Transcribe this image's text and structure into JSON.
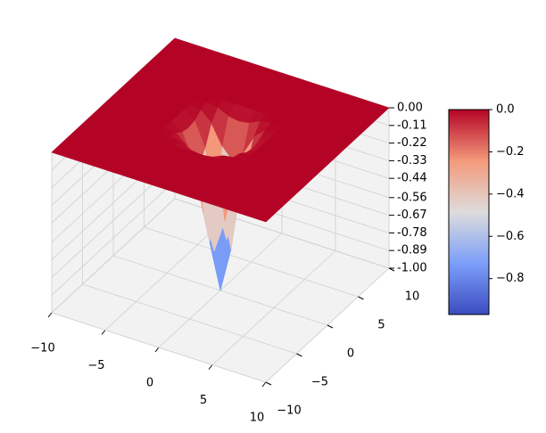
{
  "chart_data": {
    "type": "surface",
    "x": [
      -10,
      -6,
      -4,
      -3,
      -2,
      -1,
      0,
      1,
      2,
      3,
      4,
      6,
      10
    ],
    "y": [
      -10,
      -6,
      -4,
      -3,
      -2,
      -1,
      0,
      1,
      2,
      3,
      4,
      6,
      10
    ],
    "z": [
      [
        0,
        0,
        0,
        0,
        0,
        0,
        0,
        0,
        0,
        0,
        0,
        0,
        0
      ],
      [
        0,
        0,
        0,
        0,
        0,
        0,
        0,
        0,
        0,
        0,
        0,
        0,
        0
      ],
      [
        0,
        0,
        0,
        0,
        0,
        0,
        0,
        0,
        0,
        0,
        0,
        0,
        0
      ],
      [
        0,
        0,
        0,
        0,
        -0.01,
        -0.04,
        -0.05,
        -0.04,
        -0.01,
        0,
        0,
        0,
        0
      ],
      [
        0,
        0,
        0,
        -0.01,
        -0.07,
        -0.19,
        -0.26,
        -0.19,
        -0.07,
        -0.01,
        0,
        0,
        0
      ],
      [
        0,
        0,
        0,
        -0.04,
        -0.19,
        -0.51,
        -0.72,
        -0.51,
        -0.19,
        -0.04,
        0,
        0,
        0
      ],
      [
        0,
        0,
        0,
        -0.05,
        -0.26,
        -0.72,
        -1,
        -0.72,
        -0.26,
        -0.05,
        0,
        0,
        0
      ],
      [
        0,
        0,
        0,
        -0.04,
        -0.19,
        -0.51,
        -0.72,
        -0.51,
        -0.19,
        -0.04,
        0,
        0,
        0
      ],
      [
        0,
        0,
        0,
        -0.01,
        -0.07,
        -0.19,
        -0.26,
        -0.19,
        -0.07,
        -0.01,
        0,
        0,
        0
      ],
      [
        0,
        0,
        0,
        0,
        -0.01,
        -0.04,
        -0.05,
        -0.04,
        -0.01,
        0,
        0,
        0,
        0
      ],
      [
        0,
        0,
        0,
        0,
        0,
        0,
        0,
        0,
        0,
        0,
        0,
        0,
        0
      ],
      [
        0,
        0,
        0,
        0,
        0,
        0,
        0,
        0,
        0,
        0,
        0,
        0,
        0
      ],
      [
        0,
        0,
        0,
        0,
        0,
        0,
        0,
        0,
        0,
        0,
        0,
        0,
        0
      ]
    ],
    "colormap": "coolwarm",
    "clim": [
      -0.97,
      0
    ],
    "xlim": [
      -10,
      10
    ],
    "ylim": [
      -10,
      10
    ],
    "zlim": [
      -1,
      0
    ],
    "xticks": [
      {
        "value": -10,
        "label": "−10"
      },
      {
        "value": -5,
        "label": "−5"
      },
      0,
      5,
      10
    ],
    "yticks": [
      {
        "value": -10,
        "label": "−10"
      },
      {
        "value": -5,
        "label": "−5"
      },
      0,
      5,
      10
    ],
    "zticks": [
      {
        "value": 0,
        "label": "0.00"
      },
      -0.11,
      -0.22,
      -0.33,
      -0.44,
      -0.56,
      -0.67,
      -0.78,
      -0.89,
      {
        "value": -1,
        "label": "-1.00"
      }
    ],
    "colorbar_ticks": [
      {
        "value": 0,
        "label": "0.0"
      },
      {
        "value": -0.2,
        "label": "−0.2"
      },
      {
        "value": -0.4,
        "label": "−0.4"
      },
      {
        "value": -0.6,
        "label": "−0.6"
      },
      {
        "value": -0.8,
        "label": "−0.8"
      }
    ],
    "grid": true
  }
}
